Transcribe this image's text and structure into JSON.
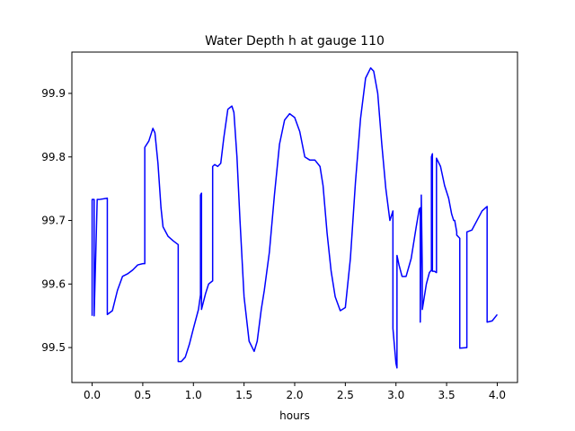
{
  "chart_data": {
    "type": "line",
    "title": "Water Depth h at gauge 110",
    "xlabel": "hours",
    "ylabel": "",
    "xlim": [
      -0.2,
      4.2
    ],
    "ylim": [
      99.445,
      99.965
    ],
    "grid": false,
    "xticks": [
      0.0,
      0.5,
      1.0,
      1.5,
      2.0,
      2.5,
      3.0,
      3.5,
      4.0
    ],
    "xtick_labels": [
      "0.0",
      "0.5",
      "1.0",
      "1.5",
      "2.0",
      "2.5",
      "3.0",
      "3.5",
      "4.0"
    ],
    "yticks": [
      99.5,
      99.6,
      99.7,
      99.8,
      99.9
    ],
    "ytick_labels": [
      "99.5",
      "99.6",
      "99.7",
      "99.8",
      "99.9"
    ],
    "series": [
      {
        "color": "#0000ff",
        "x": [
          0.0,
          0.0,
          0.02,
          0.02,
          0.05,
          0.05,
          0.07,
          0.07,
          0.15,
          0.15,
          0.2,
          0.25,
          0.3,
          0.35,
          0.4,
          0.45,
          0.5,
          0.52,
          0.52,
          0.56,
          0.6,
          0.62,
          0.65,
          0.68,
          0.7,
          0.75,
          0.8,
          0.85,
          0.85,
          0.88,
          0.92,
          0.96,
          1.0,
          1.05,
          1.07,
          1.07,
          1.08,
          1.08,
          1.12,
          1.15,
          1.19,
          1.19,
          1.21,
          1.24,
          1.27,
          1.3,
          1.34,
          1.38,
          1.4,
          1.43,
          1.46,
          1.5,
          1.55,
          1.6,
          1.63,
          1.67,
          1.7,
          1.75,
          1.8,
          1.85,
          1.9,
          1.95,
          2.0,
          2.05,
          2.1,
          2.15,
          2.2,
          2.25,
          2.28,
          2.32,
          2.36,
          2.4,
          2.45,
          2.5,
          2.55,
          2.6,
          2.65,
          2.7,
          2.75,
          2.78,
          2.82,
          2.86,
          2.9,
          2.94,
          2.97,
          2.97,
          3.0,
          3.01,
          3.01,
          3.03,
          3.06,
          3.1,
          3.15,
          3.2,
          3.23,
          3.24,
          3.24,
          3.25,
          3.25,
          3.26,
          3.26,
          3.28,
          3.3,
          3.33,
          3.35,
          3.35,
          3.36,
          3.36,
          3.38,
          3.4,
          3.4,
          3.44,
          3.48,
          3.52,
          3.55,
          3.57,
          3.58,
          3.6,
          3.6,
          3.63,
          3.63,
          3.7,
          3.7,
          3.75,
          3.8,
          3.85,
          3.9,
          3.9,
          3.95,
          4.0
        ],
        "y": [
          99.55,
          99.733,
          99.733,
          99.55,
          99.733,
          99.733,
          99.733,
          99.733,
          99.735,
          99.552,
          99.558,
          99.59,
          99.612,
          99.616,
          99.622,
          99.63,
          99.632,
          99.632,
          99.815,
          99.825,
          99.845,
          99.838,
          99.79,
          99.72,
          99.69,
          99.675,
          99.668,
          99.662,
          99.478,
          99.478,
          99.485,
          99.505,
          99.53,
          99.56,
          99.583,
          99.74,
          99.743,
          99.56,
          99.585,
          99.6,
          99.605,
          99.785,
          99.788,
          99.785,
          99.79,
          99.83,
          99.875,
          99.88,
          99.87,
          99.8,
          99.7,
          99.58,
          99.51,
          99.494,
          99.51,
          99.56,
          99.59,
          99.65,
          99.74,
          99.82,
          99.858,
          99.868,
          99.862,
          99.84,
          99.8,
          99.795,
          99.795,
          99.785,
          99.755,
          99.68,
          99.62,
          99.58,
          99.558,
          99.563,
          99.64,
          99.76,
          99.86,
          99.924,
          99.94,
          99.935,
          99.9,
          99.82,
          99.75,
          99.7,
          99.715,
          99.53,
          99.475,
          99.468,
          99.645,
          99.63,
          99.612,
          99.612,
          99.64,
          99.69,
          99.718,
          99.72,
          99.54,
          99.72,
          99.74,
          99.62,
          99.56,
          99.58,
          99.6,
          99.618,
          99.622,
          99.8,
          99.805,
          99.62,
          99.62,
          99.618,
          99.798,
          99.785,
          99.755,
          99.735,
          99.71,
          99.7,
          99.7,
          99.682,
          99.677,
          99.672,
          99.499,
          99.5,
          99.682,
          99.685,
          99.7,
          99.715,
          99.722,
          99.54,
          99.542,
          99.552
        ]
      }
    ]
  }
}
